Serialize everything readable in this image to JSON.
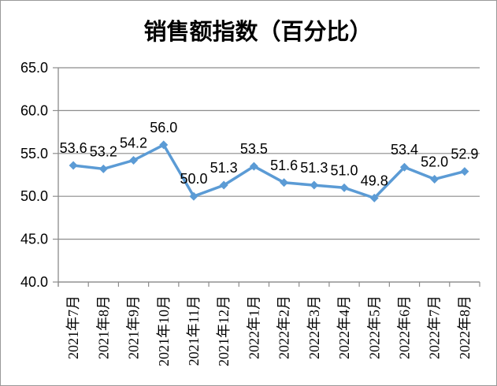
{
  "window": {
    "background": "#ffffff",
    "border_color": "#999999"
  },
  "chart_data": {
    "type": "line",
    "title": "销售额指数（百分比）",
    "categories": [
      "2021年7月",
      "2021年8月",
      "2021年9月",
      "2021年10月",
      "2021年11月",
      "2021年12月",
      "2022年1月",
      "2022年2月",
      "2022年3月",
      "2022年4月",
      "2022年5月",
      "2022年6月",
      "2022年7月",
      "2022年8月"
    ],
    "values": [
      53.6,
      53.2,
      54.2,
      56.0,
      50.0,
      51.3,
      53.5,
      51.6,
      51.3,
      51.0,
      49.8,
      53.4,
      52.0,
      52.9
    ],
    "data_labels": [
      "53.6",
      "53.2",
      "54.2",
      "56.0",
      "50.0",
      "51.3",
      "53.5",
      "51.6",
      "51.3",
      "51.0",
      "49.8",
      "53.4",
      "52.0",
      "52.9"
    ],
    "y_tick_labels": [
      "65.0",
      "60.0",
      "55.0",
      "50.0",
      "45.0",
      "40.0"
    ],
    "ylim": [
      40,
      65
    ],
    "y_step": 5,
    "xlabel": "",
    "ylabel": "",
    "grid": "horizontal",
    "legend_position": "none",
    "marker": "diamond",
    "colors": {
      "line": "#5B9BD5",
      "marker": "#5B9BD5",
      "grid": "#8C8C8C",
      "axis": "#8C8C8C",
      "text": "#000000"
    }
  }
}
